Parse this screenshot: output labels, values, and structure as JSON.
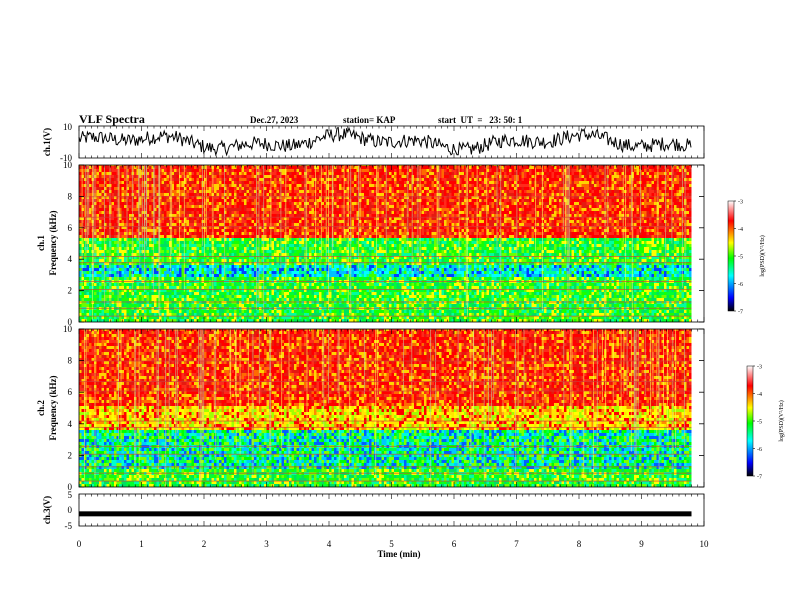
{
  "header": {
    "title": "VLF Spectra",
    "date": "Dec.27, 2023",
    "station": "station= KAP",
    "start": "start  UT  =   23: 50: 1"
  },
  "chart_data": [
    {
      "type": "line",
      "panel": "ch1-waveform",
      "ylabel": "ch.1(V)",
      "ylim": [
        -10,
        10
      ],
      "ytick_labels": [
        "-10",
        "10"
      ],
      "xlim": [
        0,
        10
      ],
      "series_summary": {
        "min": -8,
        "max": 9,
        "x_end": 9.8
      }
    },
    {
      "type": "heatmap",
      "panel": "ch1-spectrogram",
      "ylabel": "ch.1\nFrequency (kHz)",
      "ylim": [
        0,
        10
      ],
      "ytick_labels": [
        "0",
        "2",
        "4",
        "6",
        "8",
        "10"
      ],
      "xlim": [
        0,
        10
      ],
      "x_end": 9.8,
      "bands_kHz": [
        {
          "from": 0,
          "to": 1,
          "level": "green"
        },
        {
          "from": 1,
          "to": 2.8,
          "level": "green"
        },
        {
          "from": 2.8,
          "to": 3.6,
          "level": "cyan"
        },
        {
          "from": 3.6,
          "to": 5.2,
          "level": "green"
        },
        {
          "from": 5.2,
          "to": 10,
          "level": "red"
        }
      ],
      "colorbar": {
        "label": "log(PSD)(V²/Hz)",
        "range": [
          -7,
          -3
        ],
        "ticks": [
          "-3",
          "-4",
          "-5",
          "-6",
          "-7"
        ]
      }
    },
    {
      "type": "heatmap",
      "panel": "ch2-spectrogram",
      "ylabel": "ch.2\nFrequency (kHz)",
      "ylim": [
        0,
        10
      ],
      "ytick_labels": [
        "0",
        "2",
        "4",
        "6",
        "8",
        "10"
      ],
      "xlim": [
        0,
        10
      ],
      "x_end": 9.8,
      "bands_kHz": [
        {
          "from": 0,
          "to": 1,
          "level": "green"
        },
        {
          "from": 1,
          "to": 3.6,
          "level": "green-cyan"
        },
        {
          "from": 3.6,
          "to": 5,
          "level": "yellow"
        },
        {
          "from": 5,
          "to": 10,
          "level": "red"
        }
      ],
      "colorbar": {
        "label": "log(PSD)(V²/Hz)",
        "range": [
          -7,
          -3
        ],
        "ticks": [
          "-3",
          "-4",
          "-5",
          "-6",
          "-7"
        ]
      }
    },
    {
      "type": "line",
      "panel": "ch3-waveform",
      "ylabel": "ch.3(V)",
      "ylim": [
        -5,
        5
      ],
      "ytick_labels": [
        "-5",
        "0",
        "5"
      ],
      "xlim": [
        0,
        10
      ],
      "series_summary": {
        "level": -1.2,
        "x_end": 9.8
      }
    }
  ],
  "xaxis": {
    "label": "Time (min)",
    "tick_labels": [
      "0",
      "1",
      "2",
      "3",
      "4",
      "5",
      "6",
      "7",
      "8",
      "9",
      "10"
    ]
  },
  "colors": {
    "background": "#ffffff",
    "axes": "#000000",
    "colormap": [
      "#000000",
      "#0000ff",
      "#00ffff",
      "#00ff00",
      "#ffff00",
      "#ff0000",
      "#ffffff"
    ]
  }
}
